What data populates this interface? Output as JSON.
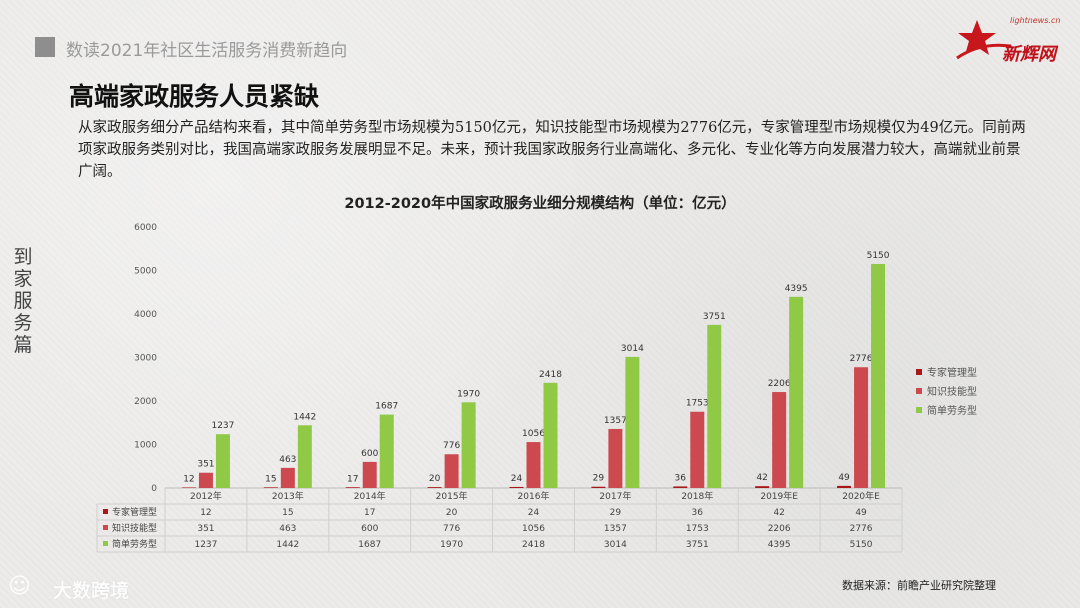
{
  "header": {
    "section": "数读2021年社区生活服务消费新趋向",
    "title": "高端家政服务人员紧缺"
  },
  "logo": {
    "url": "lightnews.cn",
    "name": "新辉网"
  },
  "side_label": "到家服务篇",
  "paragraph": "从家政服务细分产品结构来看，其中简单劳务型市场规模为5150亿元，知识技能型市场规模为2776亿元，专家管理型市场规模仅为49亿元。同前两项家政服务类别对比，我国高端家政服务发展明显不足。未来，预计我国家政服务行业高端化、多元化、专业化等方向发展潜力较大，高端就业前景广阔。",
  "source": "数据来源：前瞻产业研究院整理",
  "watermark": "大数跨境",
  "colors": {
    "expert": "#a8171a",
    "knowledge": "#cc4a4f",
    "labor": "#8fc945"
  },
  "chart_data": {
    "type": "bar",
    "title": "2012-2020年中国家政服务业细分规模结构（单位：亿元）",
    "categories": [
      "2012年",
      "2013年",
      "2014年",
      "2015年",
      "2016年",
      "2017年",
      "2018年",
      "2019年E",
      "2020年E"
    ],
    "series": [
      {
        "name": "专家管理型",
        "values": [
          12,
          15,
          17,
          20,
          24,
          29,
          36,
          42,
          49
        ]
      },
      {
        "name": "知识技能型",
        "values": [
          351,
          463,
          600,
          776,
          1056,
          1357,
          1753,
          2206,
          2776
        ]
      },
      {
        "name": "简单劳务型",
        "values": [
          1237,
          1442,
          1687,
          1970,
          2418,
          3014,
          3751,
          4395,
          5150
        ]
      }
    ],
    "yticks": [
      "0",
      "1000",
      "2000",
      "3000",
      "4000",
      "5000",
      "6000"
    ],
    "ylim": [
      0,
      6000
    ],
    "legend_position": "right",
    "data_table": true
  }
}
